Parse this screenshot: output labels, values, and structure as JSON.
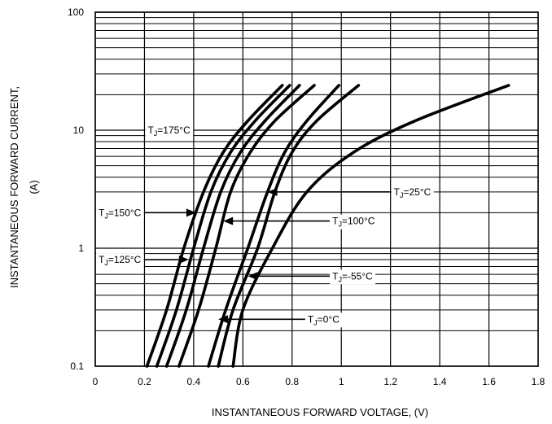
{
  "chart_data": {
    "type": "line",
    "xlabel": "INSTANTANEOUS FORWARD VOLTAGE,  (V)",
    "ylabel_line1": "INSTANTANEOUS FORWARD CURRENT,",
    "ylabel_line2": "(A)",
    "xlim": [
      0,
      1.8
    ],
    "ylim": [
      0.1,
      100
    ],
    "yscale": "log",
    "grid": true,
    "x_ticks": [
      "0",
      "0.2",
      "0.4",
      "0.6",
      "0.8",
      "1",
      "1.2",
      "1.4",
      "1.6",
      "1.8"
    ],
    "y_ticks": [
      "0.1",
      "1",
      "10",
      "100"
    ],
    "series": [
      {
        "name": "T_J=175°C",
        "label_sub": "J",
        "label_pre": "T",
        "label_post": "=175°C",
        "points": [
          [
            0.21,
            0.1
          ],
          [
            0.29,
            0.3
          ],
          [
            0.36,
            1
          ],
          [
            0.44,
            3
          ],
          [
            0.52,
            6.5
          ],
          [
            0.62,
            12
          ],
          [
            0.76,
            24
          ]
        ]
      },
      {
        "name": "T_J=150°C",
        "label_sub": "J",
        "label_pre": "T",
        "label_post": "=150°C",
        "points": [
          [
            0.25,
            0.1
          ],
          [
            0.33,
            0.3
          ],
          [
            0.4,
            1
          ],
          [
            0.47,
            3
          ],
          [
            0.55,
            6.5
          ],
          [
            0.65,
            12
          ],
          [
            0.79,
            24
          ]
        ]
      },
      {
        "name": "T_J=125°C",
        "label_sub": "J",
        "label_pre": "T",
        "label_post": "=125°C",
        "points": [
          [
            0.29,
            0.1
          ],
          [
            0.37,
            0.3
          ],
          [
            0.44,
            1
          ],
          [
            0.51,
            3
          ],
          [
            0.59,
            6.5
          ],
          [
            0.69,
            12
          ],
          [
            0.83,
            24
          ]
        ]
      },
      {
        "name": "T_J=100°C",
        "label_sub": "J",
        "label_pre": "T",
        "label_post": "=100°C",
        "points": [
          [
            0.34,
            0.1
          ],
          [
            0.42,
            0.3
          ],
          [
            0.49,
            1
          ],
          [
            0.55,
            3
          ],
          [
            0.63,
            6.5
          ],
          [
            0.73,
            12
          ],
          [
            0.89,
            24
          ]
        ]
      },
      {
        "name": "T_J=25°C",
        "label_sub": "J",
        "label_pre": "T",
        "label_post": "=25°C",
        "points": [
          [
            0.46,
            0.1
          ],
          [
            0.53,
            0.3
          ],
          [
            0.62,
            1
          ],
          [
            0.7,
            3
          ],
          [
            0.77,
            6.5
          ],
          [
            0.86,
            12
          ],
          [
            0.99,
            24
          ]
        ]
      },
      {
        "name": "T_J=0°C",
        "label_sub": "J",
        "label_pre": "T",
        "label_post": "=0°C",
        "points": [
          [
            0.5,
            0.1
          ],
          [
            0.56,
            0.3
          ],
          [
            0.66,
            1
          ],
          [
            0.73,
            3
          ],
          [
            0.8,
            6.5
          ],
          [
            0.9,
            12
          ],
          [
            1.07,
            24
          ]
        ]
      },
      {
        "name": "T_J=-55°C",
        "label_sub": "J",
        "label_pre": "T",
        "label_post": "=-55°C",
        "points": [
          [
            0.56,
            0.1
          ],
          [
            0.6,
            0.3
          ],
          [
            0.72,
            1
          ],
          [
            0.86,
            3
          ],
          [
            1.05,
            6.5
          ],
          [
            1.3,
            12
          ],
          [
            1.68,
            24
          ]
        ]
      }
    ],
    "annotations": [
      {
        "series": "T_J=175°C",
        "text_pre": "T",
        "text_sub": "J",
        "text_post": "=175°C",
        "label_at": [
          0.2,
          10
        ],
        "points_to": null
      },
      {
        "series": "T_J=150°C",
        "text_pre": "T",
        "text_sub": "J",
        "text_post": "=150°C",
        "label_at": [
          0.0,
          2.0
        ],
        "points_to": [
          0.41,
          2.0
        ]
      },
      {
        "series": "T_J=125°C",
        "text_pre": "T",
        "text_sub": "J",
        "text_post": "=125°C",
        "label_at": [
          0.0,
          0.8
        ],
        "points_to": [
          0.38,
          0.8
        ]
      },
      {
        "series": "T_J=100°C",
        "text_pre": "T",
        "text_sub": "J",
        "text_post": "=100°C",
        "label_at": [
          0.95,
          1.7
        ],
        "points_to": [
          0.52,
          1.7
        ]
      },
      {
        "series": "T_J=25°C",
        "text_pre": "T",
        "text_sub": "J",
        "text_post": "=25°C",
        "label_at": [
          1.2,
          3.0
        ],
        "points_to": [
          0.7,
          3.0
        ]
      },
      {
        "series": "T_J=-55°C",
        "text_pre": "T",
        "text_sub": "J",
        "text_post": "=-55°C",
        "label_at": [
          0.95,
          0.58
        ],
        "points_to": [
          0.62,
          0.58
        ]
      },
      {
        "series": "T_J=0°C",
        "text_pre": "T",
        "text_sub": "J",
        "text_post": "=0°C",
        "label_at": [
          0.85,
          0.25
        ],
        "points_to": [
          0.5,
          0.25
        ]
      }
    ]
  }
}
